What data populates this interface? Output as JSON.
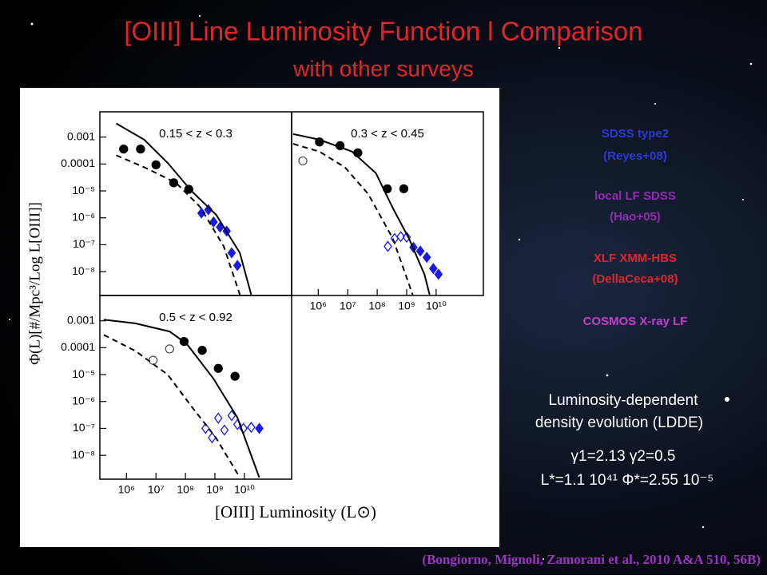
{
  "title": "[OIII] Line Luminosity Function l Comparison",
  "subtitle": "with other surveys",
  "figure": {
    "y_label": "Φ(L)[#/Mpc³/Log L[OIII]]",
    "x_label": "[OIII] Luminosity (L⊙)"
  },
  "legend": [
    {
      "text": "SDSS type2",
      "color": "#2b3bd6"
    },
    {
      "text": "(Reyes+08)",
      "color": "#2b3bd6"
    },
    {
      "text": "local LF SDSS",
      "color": "#8e2fb0"
    },
    {
      "text": "(Hao+05)",
      "color": "#8e2fb0"
    },
    {
      "text": "XLF XMM-HBS",
      "color": "#e0262b"
    },
    {
      "text": "(DellaCeca+08)",
      "color": "#e0262b"
    },
    {
      "text": "COSMOS X-ray LF",
      "color": "#c23fd0"
    }
  ],
  "model": {
    "line1": "Luminosity-dependent",
    "line2": "density evolution (LDDE)",
    "params1": "γ1=2.13 γ2=0.5",
    "params2": "L*=1.1 10⁴¹ Φ*=2.55 10⁻⁵"
  },
  "citation": "(Bongiorno, Mignoli, Zamorani et al., 2010 A&A 510, 56B)",
  "chart_data": [
    {
      "type": "scatter",
      "label": "0.15 < z < 0.3",
      "xlog": true,
      "ylog": true,
      "xlim": [
        125000,
        400000000000
      ],
      "ylim": [
        1.3e-09,
        0.0087
      ],
      "yticks": [
        0.001,
        0.0001,
        {
          "value": 1e-05,
          "label": "10⁻⁵"
        },
        {
          "value": 1e-06,
          "label": "10⁻⁶"
        },
        {
          "value": 1e-07,
          "label": "10⁻⁷"
        },
        {
          "value": 1e-08,
          "label": "10⁻⁸"
        }
      ],
      "series": [
        {
          "marker": "circle",
          "filled": true,
          "color": "#000000",
          "x": [
            800000,
            3000000,
            10000000,
            40000000,
            130000000
          ],
          "values": [
            0.00036,
            0.00036,
            9.3e-05,
            2e-05,
            1.15e-05
          ]
        },
        {
          "marker": "diamond",
          "filled": true,
          "color": "#1a1ae6",
          "x": [
            350000000,
            600000000,
            900000000,
            1500000000,
            2500000000,
            3700000000,
            5800000000
          ],
          "values": [
            1.5e-06,
            2e-06,
            7e-07,
            4.5e-07,
            3.2e-07,
            5e-08,
            1.7e-08
          ]
        },
        {
          "line": "solid",
          "color": "#000000",
          "x": [
            450000,
            4000000,
            25000000,
            160000000,
            1100000000,
            7000000000,
            17000000000
          ],
          "values": [
            0.0032,
            0.0008,
            0.00011,
            1e-05,
            1.3e-06,
            5e-08,
            1.4e-09
          ]
        },
        {
          "line": "dashed",
          "color": "#000000",
          "x": [
            450000,
            4000000,
            48000000,
            310000000,
            2000000000,
            7000000000
          ],
          "values": [
            0.00021,
            7.6e-05,
            2e-05,
            2.6e-06,
            8.7e-08,
            1.4e-09
          ]
        }
      ]
    },
    {
      "type": "scatter",
      "label": "0.3 < z < 0.45",
      "xlog": true,
      "ylog": true,
      "xlim": [
        125000,
        400000000000
      ],
      "ylim": [
        1.3e-09,
        0.0087
      ],
      "xticks": [
        {
          "value": 1000000,
          "label": "10⁶"
        },
        {
          "value": 10000000,
          "label": "10⁷"
        },
        {
          "value": 100000000,
          "label": "10⁸"
        },
        {
          "value": 1000000000,
          "label": "10⁹"
        },
        {
          "value": 10000000000,
          "label": "10¹⁰"
        }
      ],
      "series": [
        {
          "marker": "circle",
          "filled": true,
          "color": "#000000",
          "x": [
            1100000,
            5500000,
            22000000,
            220000000,
            800000000
          ],
          "values": [
            0.00066,
            0.00048,
            0.00026,
            1.2e-05,
            1.2e-05
          ]
        },
        {
          "marker": "circle",
          "filled": false,
          "color": "#555555",
          "x": [
            300000
          ],
          "values": [
            0.00013
          ]
        },
        {
          "marker": "diamond",
          "filled": false,
          "color": "#1a1ae6",
          "x": [
            230000000,
            390000000,
            630000000,
            1000000000
          ],
          "values": [
            8.7e-08,
            1.7e-07,
            2e-07,
            1.9e-07
          ]
        },
        {
          "marker": "diamond",
          "filled": true,
          "color": "#1a1ae6",
          "x": [
            1700000000,
            2900000000,
            4800000000,
            8000000000,
            12000000000
          ],
          "values": [
            8e-08,
            5.8e-08,
            3.4e-08,
            1.3e-08,
            8e-09
          ]
        },
        {
          "line": "solid",
          "color": "#000000",
          "x": [
            140000,
            1100000,
            14000000,
            90000000,
            340000000,
            1200000000,
            4000000000,
            6000000000
          ],
          "values": [
            0.0013,
            0.0008,
            0.00029,
            4.6e-05,
            2.3e-06,
            1.7e-07,
            8e-09,
            1.4e-09
          ]
        },
        {
          "line": "dashed",
          "color": "#000000",
          "x": [
            140000,
            1100000,
            8000000,
            50000000,
            340000000,
            1600000000
          ],
          "values": [
            0.00056,
            0.00029,
            7.6e-05,
            7.6e-06,
            1.7e-07,
            1.4e-09
          ]
        }
      ]
    },
    {
      "type": "scatter",
      "label": "0.5 < z < 0.92",
      "xlog": true,
      "ylog": true,
      "xlim": [
        125000,
        400000000000
      ],
      "ylim": [
        1.3e-09,
        0.0087
      ],
      "xticks": [
        {
          "value": 1000000,
          "label": "10⁶"
        },
        {
          "value": 10000000,
          "label": "10⁷"
        },
        {
          "value": 100000000,
          "label": "10⁸"
        },
        {
          "value": 1000000000,
          "label": "10⁹"
        },
        {
          "value": 10000000000,
          "label": "10¹⁰"
        }
      ],
      "yticks": [
        0.001,
        0.0001,
        {
          "value": 1e-05,
          "label": "10⁻⁵"
        },
        {
          "value": 1e-06,
          "label": "10⁻⁶"
        },
        {
          "value": 1e-07,
          "label": "10⁻⁷"
        },
        {
          "value": 1e-08,
          "label": "10⁻⁸"
        }
      ],
      "series": [
        {
          "marker": "circle",
          "filled": true,
          "color": "#000000",
          "x": [
            90000000,
            370000000,
            1300000000,
            4800000000
          ],
          "values": [
            0.00017,
            8e-05,
            1.7e-05,
            8.7e-06
          ]
        },
        {
          "marker": "circle",
          "filled": false,
          "color": "#555555",
          "x": [
            8000000,
            29000000
          ],
          "values": [
            3.4e-05,
            9e-05
          ]
        },
        {
          "marker": "diamond",
          "filled": false,
          "color": "#1a1ae6",
          "x": [
            480000000,
            800000000,
            1300000000,
            2100000000,
            3700000000,
            5800000000,
            9300000000,
            17000000000
          ],
          "values": [
            1e-07,
            4.5e-08,
            2.4e-07,
            8.7e-08,
            3e-07,
            1.4e-07,
            1e-07,
            1.1e-07
          ]
        },
        {
          "marker": "diamond",
          "filled": true,
          "color": "#1a1ae6",
          "x": [
            32000000000
          ],
          "values": [
            1e-07
          ]
        },
        {
          "line": "solid",
          "color": "#000000",
          "x": [
            170000,
            2000000,
            29000000,
            110000000,
            900000000,
            5800000000,
            32000000000
          ],
          "values": [
            0.0011,
            0.0008,
            0.0004,
            0.00014,
            7e-06,
            2.5e-07,
            1.5e-09
          ]
        },
        {
          "line": "dashed",
          "color": "#000000",
          "x": [
            170000,
            2000000,
            25000000,
            160000000,
            1100000000,
            7000000000
          ],
          "values": [
            0.0003,
            7.6e-05,
            1e-05,
            6.6e-07,
            4.4e-08,
            1.5e-09
          ]
        }
      ]
    }
  ]
}
